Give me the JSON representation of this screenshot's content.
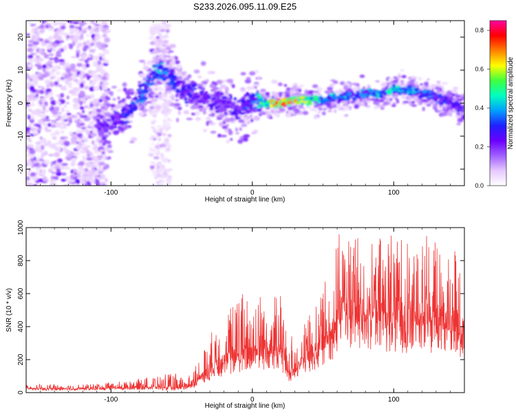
{
  "title": "S233.2026.095.11.09.E25",
  "chart_data": [
    {
      "type": "heatmap",
      "xlabel": "Height of straight line (km)",
      "ylabel": "Frequency (Hz)",
      "xlim": [
        -160,
        150
      ],
      "ylim": [
        -25,
        25
      ],
      "xticks": [
        -100,
        0,
        100
      ],
      "yticks": [
        -20,
        -10,
        0,
        10,
        20
      ],
      "colorbar": {
        "label": "Normalized spectral amplitude",
        "range": [
          0.0,
          0.85
        ],
        "ticks": [
          0.0,
          0.2,
          0.4,
          0.6,
          0.8
        ],
        "colors": [
          "#ffffff",
          "#e6c8ff",
          "#a060ff",
          "#6a00ff",
          "#2020ff",
          "#00a0ff",
          "#00ffc0",
          "#40ff40",
          "#ffff00",
          "#ff8000",
          "#ff0000",
          "#ff00a0"
        ]
      },
      "ridge": {
        "x": [
          -105,
          -95,
          -85,
          -75,
          -68,
          -60,
          -50,
          -40,
          -30,
          -20,
          -10,
          0,
          10,
          20,
          30,
          40,
          50,
          60,
          70,
          80,
          90,
          100,
          110,
          120,
          130,
          140,
          150
        ],
        "f": [
          -7,
          -5,
          -2,
          5,
          10,
          9,
          4,
          2,
          1,
          0,
          -2,
          1,
          0,
          0,
          1,
          1,
          1,
          2,
          2,
          3,
          3,
          4,
          4,
          3,
          2,
          0,
          -2
        ],
        "amp": [
          0.25,
          0.3,
          0.35,
          0.4,
          0.45,
          0.4,
          0.3,
          0.3,
          0.28,
          0.26,
          0.3,
          0.35,
          0.6,
          0.85,
          0.75,
          0.55,
          0.45,
          0.45,
          0.4,
          0.4,
          0.45,
          0.5,
          0.45,
          0.4,
          0.35,
          0.3,
          0.3
        ]
      }
    },
    {
      "type": "line",
      "xlabel": "Height of straight line (km)",
      "ylabel": "SNR (10 * v/v)",
      "xlim": [
        -160,
        150
      ],
      "ylim": [
        0,
        1000
      ],
      "xticks": [
        -100,
        0,
        100
      ],
      "yticks": [
        0,
        200,
        400,
        600,
        800,
        1000
      ],
      "color": "#ee3333",
      "series": [
        {
          "name": "SNR",
          "envelope": {
            "x": [
              -160,
              -120,
              -90,
              -70,
              -55,
              -45,
              -35,
              -25,
              -10,
              0,
              10,
              20,
              25,
              35,
              45,
              55,
              60,
              65,
              80,
              100,
              120,
              135,
              150
            ],
            "base": [
              20,
              20,
              25,
              30,
              20,
              30,
              90,
              150,
              200,
              220,
              230,
              240,
              90,
              160,
              220,
              300,
              400,
              450,
              420,
              400,
              400,
              380,
              350
            ],
            "peak": [
              50,
              50,
              70,
              100,
              120,
              100,
              250,
              450,
              600,
              650,
              600,
              620,
              300,
              450,
              550,
              750,
              950,
              1000,
              900,
              1000,
              1000,
              900,
              900
            ]
          }
        }
      ]
    }
  ]
}
